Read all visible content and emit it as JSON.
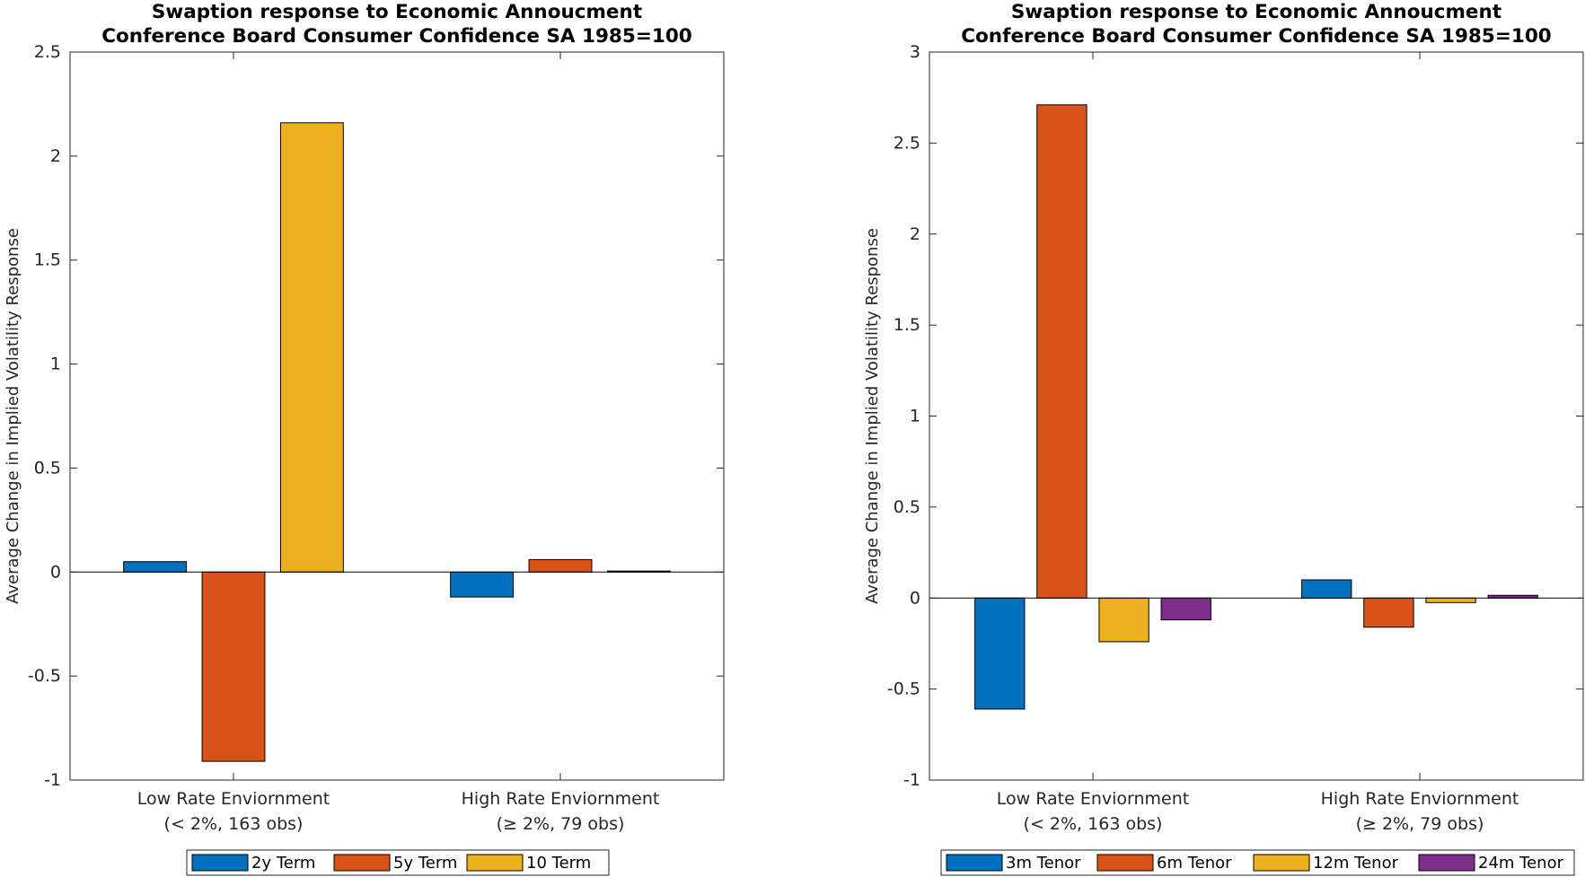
{
  "chart_data": [
    {
      "type": "bar",
      "title": [
        "Swaption response to Economic Annoucment",
        "Conference Board Consumer Confidence SA 1985=100"
      ],
      "ylabel": "Average Change in Implied Volatility Response",
      "xlabel": "",
      "categories": [
        [
          "Low Rate Enviornment",
          "(< 2%, 163 obs)"
        ],
        [
          "High Rate Enviornment",
          "(≥ 2%, 79 obs)"
        ]
      ],
      "ylim": [
        -1,
        2.5
      ],
      "yticks": [
        -1,
        -0.5,
        0,
        0.5,
        1,
        1.5,
        2,
        2.5
      ],
      "ytick_labels": [
        "-1",
        "-0.5",
        "0",
        "0.5",
        "1",
        "1.5",
        "2",
        "2.5"
      ],
      "series": [
        {
          "name": "2y Term",
          "values": [
            0.05,
            -0.12
          ],
          "color": "#0072BD"
        },
        {
          "name": "5y Term",
          "values": [
            -0.91,
            0.06
          ],
          "color": "#D95319"
        },
        {
          "name": "10 Term",
          "values": [
            2.16,
            0.005
          ],
          "color": "#EDB120"
        }
      ],
      "legend": "bottom-center",
      "grid": false
    },
    {
      "type": "bar",
      "title": [
        "Swaption response to Economic Annoucment",
        "Conference Board Consumer Confidence SA 1985=100"
      ],
      "ylabel": "Average Change in Implied Volatility Response",
      "xlabel": "",
      "categories": [
        [
          "Low Rate Enviornment",
          "(< 2%, 163 obs)"
        ],
        [
          "High Rate Enviornment",
          "(≥ 2%, 79 obs)"
        ]
      ],
      "ylim": [
        -1,
        3
      ],
      "yticks": [
        -1,
        -0.5,
        0,
        0.5,
        1,
        1.5,
        2,
        2.5,
        3
      ],
      "ytick_labels": [
        "-1",
        "-0.5",
        "0",
        "0.5",
        "1",
        "1.5",
        "2",
        "2.5",
        "3"
      ],
      "series": [
        {
          "name": "3m Tenor",
          "values": [
            -0.61,
            0.1
          ],
          "color": "#0072BD"
        },
        {
          "name": "6m Tenor",
          "values": [
            2.71,
            -0.16
          ],
          "color": "#D95319"
        },
        {
          "name": "12m Tenor",
          "values": [
            -0.24,
            -0.025
          ],
          "color": "#EDB120"
        },
        {
          "name": "24m Tenor",
          "values": [
            -0.12,
            0.015
          ],
          "color": "#7E2F8E"
        }
      ],
      "legend": "bottom-center",
      "grid": false
    }
  ]
}
